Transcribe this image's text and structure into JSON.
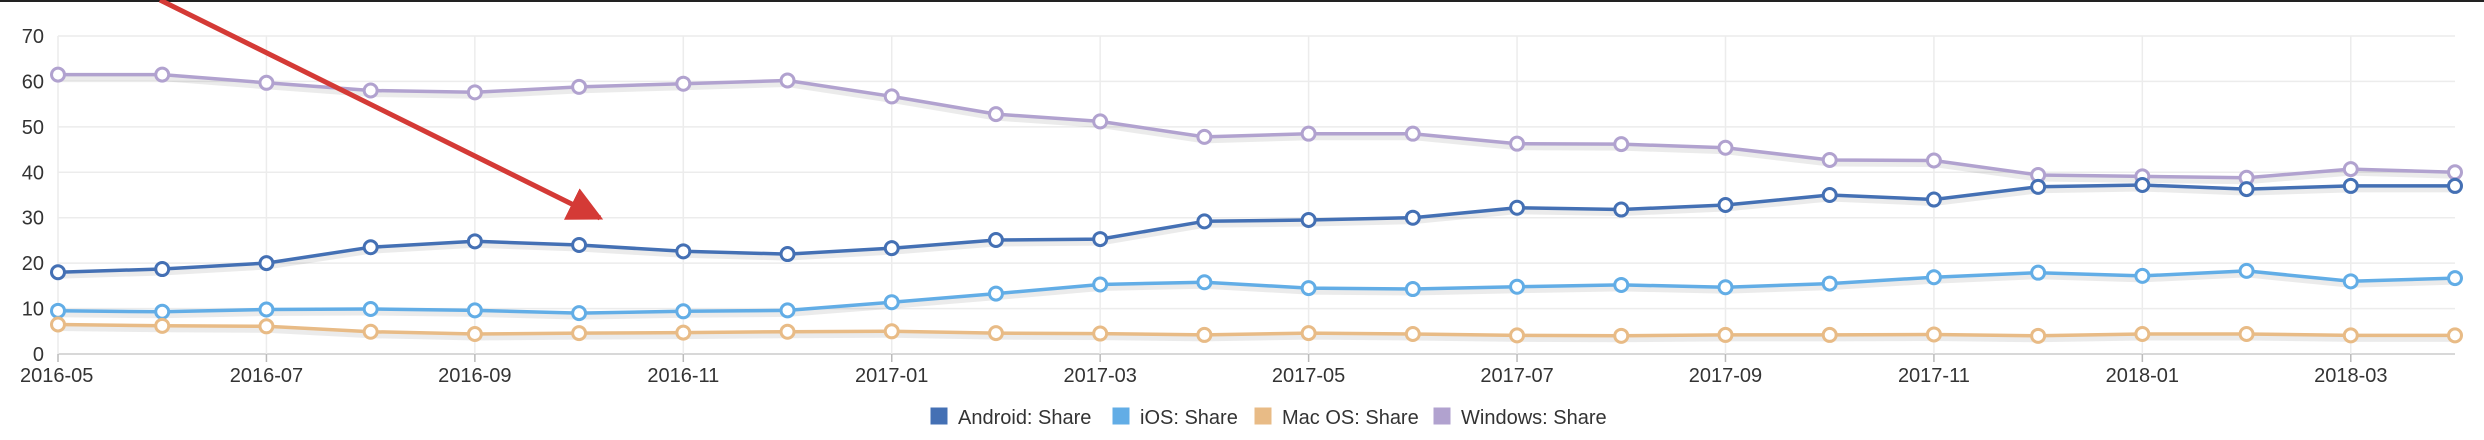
{
  "chart_data": {
    "type": "line",
    "x": [
      "2016-05",
      "2016-06",
      "2016-07",
      "2016-08",
      "2016-09",
      "2016-10",
      "2016-11",
      "2016-12",
      "2017-01",
      "2017-02",
      "2017-03",
      "2017-04",
      "2017-05",
      "2017-06",
      "2017-07",
      "2017-08",
      "2017-09",
      "2017-10",
      "2017-11",
      "2017-12",
      "2018-01",
      "2018-02",
      "2018-03",
      "2018-04"
    ],
    "x_tick_labels": [
      "2016-05",
      "2016-07",
      "2016-09",
      "2016-11",
      "2017-01",
      "2017-03",
      "2017-05",
      "2017-07",
      "2017-09",
      "2017-11",
      "2018-01",
      "2018-03"
    ],
    "ylim": [
      0,
      70
    ],
    "y_ticks": [
      0,
      10,
      20,
      30,
      40,
      50,
      60,
      70
    ],
    "grid": true,
    "legend_position": "bottom-center",
    "series": [
      {
        "name": "Android: Share",
        "color": "#4470b4",
        "values": [
          18,
          18.7,
          20,
          23.5,
          24.8,
          24,
          22.6,
          22,
          23.3,
          25.1,
          25.3,
          29.2,
          29.5,
          30,
          32.2,
          31.8,
          32.8,
          35,
          34,
          36.8,
          37.2,
          36.3,
          37,
          37
        ]
      },
      {
        "name": "iOS: Share",
        "color": "#62ade6",
        "values": [
          9.5,
          9.3,
          9.8,
          9.9,
          9.6,
          9,
          9.4,
          9.6,
          11.4,
          13.3,
          15.3,
          15.8,
          14.5,
          14.3,
          14.8,
          15.2,
          14.7,
          15.5,
          16.9,
          17.9,
          17.2,
          18.3,
          16,
          16.7
        ]
      },
      {
        "name": "Mac OS: Share",
        "color": "#e8bb86",
        "values": [
          6.5,
          6.2,
          6.1,
          4.9,
          4.4,
          4.6,
          4.7,
          4.9,
          5,
          4.6,
          4.5,
          4.2,
          4.6,
          4.4,
          4.1,
          4,
          4.2,
          4.2,
          4.3,
          4,
          4.4,
          4.4,
          4.1,
          4.1
        ]
      },
      {
        "name": "Windows: Share",
        "color": "#b1a2cf",
        "values": [
          61.5,
          61.5,
          59.7,
          58,
          57.6,
          58.8,
          59.5,
          60.2,
          56.7,
          52.8,
          51.2,
          47.8,
          48.5,
          48.5,
          46.3,
          46.2,
          45.4,
          42.7,
          42.6,
          39.4,
          39.1,
          38.8,
          40.7,
          40
        ]
      }
    ]
  }
}
